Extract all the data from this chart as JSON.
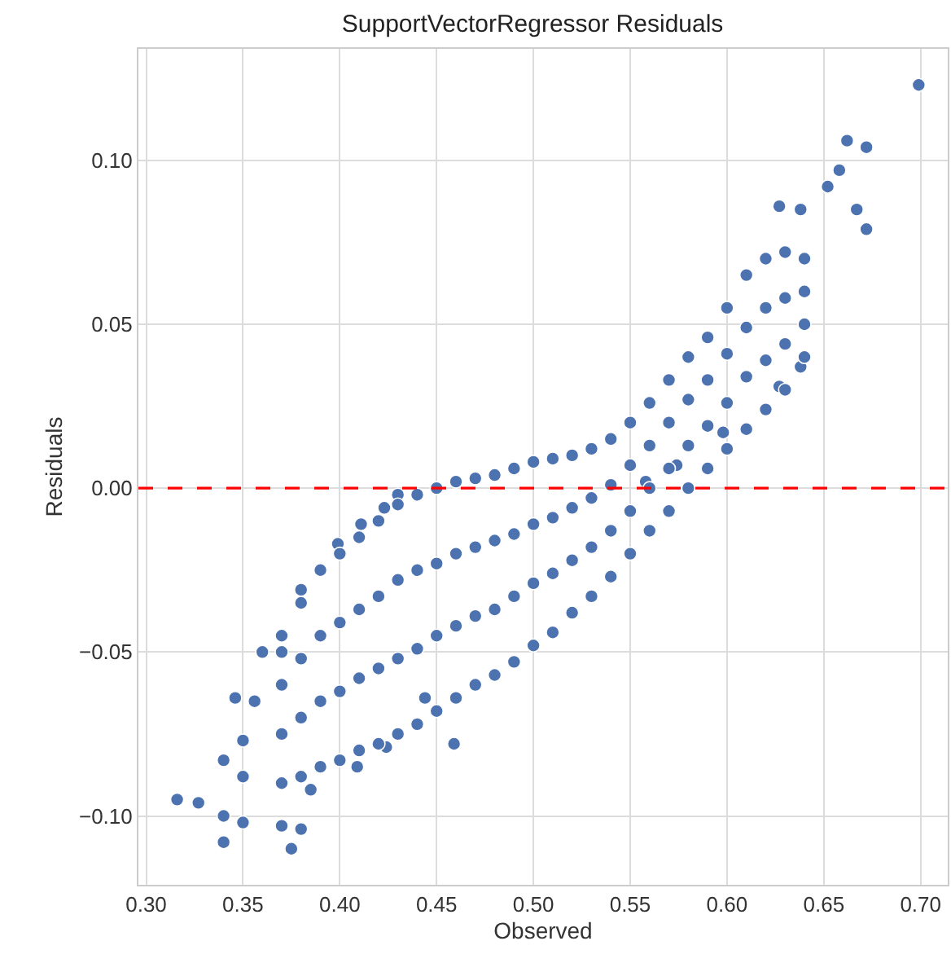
{
  "chart_data": {
    "type": "scatter",
    "title": "SupportVectorRegressor Residuals",
    "xlabel": "Observed",
    "ylabel": "Residuals",
    "xlim": [
      0.296,
      0.714
    ],
    "ylim": [
      -0.121,
      0.134
    ],
    "xticks": [
      {
        "value": 0.3,
        "label": "0.30"
      },
      {
        "value": 0.35,
        "label": "0.35"
      },
      {
        "value": 0.4,
        "label": "0.40"
      },
      {
        "value": 0.45,
        "label": "0.45"
      },
      {
        "value": 0.5,
        "label": "0.50"
      },
      {
        "value": 0.55,
        "label": "0.55"
      },
      {
        "value": 0.6,
        "label": "0.60"
      },
      {
        "value": 0.65,
        "label": "0.65"
      },
      {
        "value": 0.7,
        "label": "0.70"
      }
    ],
    "yticks": [
      {
        "value": -0.1,
        "label": "−0.10"
      },
      {
        "value": -0.05,
        "label": "−0.05"
      },
      {
        "value": 0,
        "label": "0.00"
      },
      {
        "value": 0.05,
        "label": "0.05"
      },
      {
        "value": 0.1,
        "label": "0.10"
      }
    ],
    "grid": true,
    "marker": "circle",
    "ref_lines": [
      {
        "axis": "y",
        "value": 0,
        "color": "#ff0000",
        "line_style": "dashed"
      }
    ],
    "series": [
      {
        "color": "#4c72b0",
        "x": [
          0.316,
          0.327,
          0.34,
          0.34,
          0.35,
          0.37,
          0.38,
          0.375,
          0.34,
          0.346,
          0.356,
          0.35,
          0.35,
          0.36,
          0.37,
          0.38,
          0.399,
          0.411,
          0.423,
          0.43,
          0.459,
          0.424,
          0.409,
          0.385,
          0.444,
          0.662,
          0.672,
          0.658,
          0.652,
          0.667,
          0.672,
          0.627,
          0.638,
          0.638,
          0.627,
          0.598,
          0.574,
          0.558,
          0.699,
          0.37,
          0.37,
          0.37,
          0.37,
          0.38,
          0.38,
          0.38,
          0.38,
          0.39,
          0.39,
          0.39,
          0.39,
          0.4,
          0.4,
          0.4,
          0.4,
          0.41,
          0.41,
          0.41,
          0.41,
          0.42,
          0.42,
          0.42,
          0.42,
          0.43,
          0.43,
          0.43,
          0.43,
          0.44,
          0.44,
          0.44,
          0.44,
          0.45,
          0.45,
          0.45,
          0.45,
          0.46,
          0.46,
          0.46,
          0.46,
          0.47,
          0.47,
          0.47,
          0.47,
          0.48,
          0.48,
          0.48,
          0.48,
          0.49,
          0.49,
          0.49,
          0.49,
          0.5,
          0.5,
          0.5,
          0.5,
          0.51,
          0.51,
          0.51,
          0.51,
          0.52,
          0.52,
          0.52,
          0.52,
          0.53,
          0.53,
          0.53,
          0.53,
          0.54,
          0.54,
          0.54,
          0.54,
          0.55,
          0.55,
          0.55,
          0.55,
          0.56,
          0.56,
          0.56,
          0.56,
          0.57,
          0.57,
          0.57,
          0.57,
          0.58,
          0.58,
          0.58,
          0.58,
          0.59,
          0.59,
          0.59,
          0.59,
          0.6,
          0.6,
          0.6,
          0.6,
          0.61,
          0.61,
          0.61,
          0.61,
          0.62,
          0.62,
          0.62,
          0.62,
          0.63,
          0.63,
          0.63,
          0.63,
          0.64,
          0.64,
          0.64,
          0.64
        ],
        "values": [
          -0.095,
          -0.096,
          -0.108,
          -0.1,
          -0.102,
          -0.103,
          -0.104,
          -0.11,
          -0.083,
          -0.064,
          -0.065,
          -0.077,
          -0.088,
          -0.05,
          -0.05,
          -0.031,
          -0.017,
          -0.011,
          -0.006,
          -0.002,
          -0.078,
          -0.079,
          -0.085,
          -0.092,
          -0.064,
          0.106,
          0.104,
          0.097,
          0.092,
          0.085,
          0.079,
          0.086,
          0.085,
          0.037,
          0.031,
          0.017,
          0.007,
          0.002,
          0.123,
          -0.09,
          -0.075,
          -0.06,
          -0.045,
          -0.088,
          -0.07,
          -0.052,
          -0.035,
          -0.085,
          -0.065,
          -0.045,
          -0.025,
          -0.083,
          -0.062,
          -0.041,
          -0.02,
          -0.08,
          -0.058,
          -0.037,
          -0.015,
          -0.078,
          -0.055,
          -0.033,
          -0.01,
          -0.075,
          -0.052,
          -0.028,
          -0.005,
          -0.072,
          -0.049,
          -0.025,
          -0.002,
          -0.068,
          -0.045,
          -0.023,
          0.0,
          -0.064,
          -0.042,
          -0.02,
          0.002,
          -0.06,
          -0.039,
          -0.018,
          0.003,
          -0.057,
          -0.037,
          -0.016,
          0.004,
          -0.053,
          -0.033,
          -0.014,
          0.006,
          -0.048,
          -0.029,
          -0.011,
          0.008,
          -0.044,
          -0.026,
          -0.009,
          0.009,
          -0.038,
          -0.022,
          -0.006,
          0.01,
          -0.033,
          -0.018,
          -0.003,
          0.012,
          -0.027,
          -0.013,
          0.001,
          0.015,
          -0.02,
          -0.007,
          0.007,
          0.02,
          -0.013,
          0.0,
          0.013,
          0.026,
          -0.007,
          0.006,
          0.02,
          0.033,
          0.0,
          0.013,
          0.027,
          0.04,
          0.006,
          0.019,
          0.033,
          0.046,
          0.012,
          0.026,
          0.041,
          0.055,
          0.018,
          0.034,
          0.049,
          0.065,
          0.024,
          0.039,
          0.055,
          0.07,
          0.03,
          0.044,
          0.058,
          0.072,
          0.04,
          0.05,
          0.06,
          0.07
        ]
      }
    ]
  }
}
